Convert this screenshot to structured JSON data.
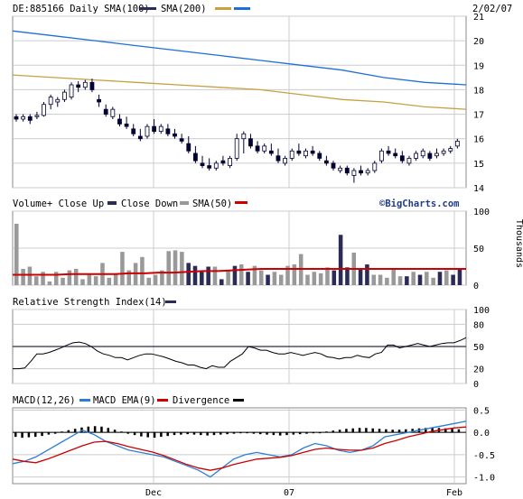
{
  "header": {
    "symbol": "DE:885166",
    "interval": "Daily",
    "sma100_label": "SMA(100)",
    "sma200_label": "SMA(200)",
    "date": "2/02/07"
  },
  "volume_header": {
    "close_up": "Volume+ Close Up",
    "close_down": "Close Down",
    "sma_label": "SMA(50)",
    "brand": "©BigCharts.com",
    "unit_label": "Thousands"
  },
  "rsi_header": {
    "label": "Relative Strength Index(14)"
  },
  "macd_header": {
    "macd": "MACD(12,26)",
    "ema": "MACD EMA(9)",
    "divergence": "Divergence"
  },
  "colors": {
    "background": "#ffffff",
    "grid": "#cccccc",
    "frame": "#888888",
    "sma100": "#1e6fd9",
    "sma200": "#c8a040",
    "up_volume": "#999999",
    "down_volume": "#2b2b57",
    "vol_sma": "#cc0000",
    "rsi": "#000000",
    "macd": "#2a7fd4",
    "macd_ema": "#cc0000",
    "divergence": "#000000",
    "candle": "#000033"
  },
  "chart_data": [
    {
      "type": "candlestick",
      "panel": "price",
      "x_tick_labels": [
        "Dec",
        "07",
        "Feb"
      ],
      "y_ticks": [
        14,
        15,
        16,
        17,
        18,
        19,
        20,
        21
      ],
      "ylim": [
        14,
        21
      ],
      "grid": true,
      "candles": [
        {
          "o": 16.9,
          "h": 17.0,
          "l": 16.7,
          "c": 16.8
        },
        {
          "o": 16.8,
          "h": 17.0,
          "l": 16.7,
          "c": 16.9
        },
        {
          "o": 16.9,
          "h": 17.0,
          "l": 16.6,
          "c": 16.75
        },
        {
          "o": 16.9,
          "h": 17.1,
          "l": 16.8,
          "c": 16.95
        },
        {
          "o": 16.95,
          "h": 17.5,
          "l": 16.9,
          "c": 17.4
        },
        {
          "o": 17.4,
          "h": 17.8,
          "l": 17.2,
          "c": 17.7
        },
        {
          "o": 17.5,
          "h": 17.7,
          "l": 17.3,
          "c": 17.6
        },
        {
          "o": 17.6,
          "h": 18.0,
          "l": 17.5,
          "c": 17.9
        },
        {
          "o": 17.7,
          "h": 18.3,
          "l": 17.6,
          "c": 18.2
        },
        {
          "o": 18.2,
          "h": 18.35,
          "l": 17.9,
          "c": 18.1
        },
        {
          "o": 18.1,
          "h": 18.4,
          "l": 18.0,
          "c": 18.3
        },
        {
          "o": 18.3,
          "h": 18.45,
          "l": 17.9,
          "c": 18.0
        },
        {
          "o": 17.6,
          "h": 17.8,
          "l": 17.3,
          "c": 17.5
        },
        {
          "o": 17.2,
          "h": 17.4,
          "l": 16.9,
          "c": 17.0
        },
        {
          "o": 16.9,
          "h": 17.3,
          "l": 16.8,
          "c": 17.2
        },
        {
          "o": 16.8,
          "h": 17.0,
          "l": 16.5,
          "c": 16.6
        },
        {
          "o": 16.6,
          "h": 16.9,
          "l": 16.4,
          "c": 16.5
        },
        {
          "o": 16.4,
          "h": 16.6,
          "l": 16.1,
          "c": 16.2
        },
        {
          "o": 16.1,
          "h": 16.4,
          "l": 15.9,
          "c": 16.0
        },
        {
          "o": 16.1,
          "h": 16.6,
          "l": 16.0,
          "c": 16.5
        },
        {
          "o": 16.5,
          "h": 16.8,
          "l": 16.2,
          "c": 16.3
        },
        {
          "o": 16.3,
          "h": 16.6,
          "l": 16.2,
          "c": 16.5
        },
        {
          "o": 16.4,
          "h": 16.6,
          "l": 16.1,
          "c": 16.2
        },
        {
          "o": 16.2,
          "h": 16.4,
          "l": 16.0,
          "c": 16.1
        },
        {
          "o": 16.0,
          "h": 16.2,
          "l": 15.8,
          "c": 15.9
        },
        {
          "o": 15.8,
          "h": 16.1,
          "l": 15.4,
          "c": 15.5
        },
        {
          "o": 15.4,
          "h": 15.7,
          "l": 15.0,
          "c": 15.1
        },
        {
          "o": 15.0,
          "h": 15.3,
          "l": 14.8,
          "c": 14.9
        },
        {
          "o": 14.9,
          "h": 15.2,
          "l": 14.7,
          "c": 14.8
        },
        {
          "o": 14.8,
          "h": 15.1,
          "l": 14.7,
          "c": 15.0
        },
        {
          "o": 15.1,
          "h": 15.3,
          "l": 14.9,
          "c": 15.0
        },
        {
          "o": 14.9,
          "h": 15.3,
          "l": 14.8,
          "c": 15.2
        },
        {
          "o": 15.2,
          "h": 16.2,
          "l": 15.1,
          "c": 16.0
        },
        {
          "o": 16.0,
          "h": 16.3,
          "l": 15.4,
          "c": 16.2
        },
        {
          "o": 16.0,
          "h": 16.2,
          "l": 15.6,
          "c": 15.7
        },
        {
          "o": 15.7,
          "h": 15.9,
          "l": 15.4,
          "c": 15.5
        },
        {
          "o": 15.5,
          "h": 15.8,
          "l": 15.4,
          "c": 15.7
        },
        {
          "o": 15.5,
          "h": 15.8,
          "l": 15.3,
          "c": 15.4
        },
        {
          "o": 15.3,
          "h": 15.6,
          "l": 15.0,
          "c": 15.1
        },
        {
          "o": 15.0,
          "h": 15.3,
          "l": 14.9,
          "c": 15.2
        },
        {
          "o": 15.2,
          "h": 15.6,
          "l": 15.1,
          "c": 15.5
        },
        {
          "o": 15.5,
          "h": 15.8,
          "l": 15.3,
          "c": 15.4
        },
        {
          "o": 15.3,
          "h": 15.6,
          "l": 15.2,
          "c": 15.5
        },
        {
          "o": 15.5,
          "h": 15.7,
          "l": 15.3,
          "c": 15.4
        },
        {
          "o": 15.4,
          "h": 15.5,
          "l": 15.1,
          "c": 15.2
        },
        {
          "o": 15.1,
          "h": 15.3,
          "l": 14.9,
          "c": 15.0
        },
        {
          "o": 15.0,
          "h": 15.1,
          "l": 14.7,
          "c": 14.8
        },
        {
          "o": 14.7,
          "h": 14.9,
          "l": 14.6,
          "c": 14.8
        },
        {
          "o": 14.8,
          "h": 14.9,
          "l": 14.5,
          "c": 14.6
        },
        {
          "o": 14.5,
          "h": 14.8,
          "l": 14.2,
          "c": 14.7
        },
        {
          "o": 14.7,
          "h": 14.9,
          "l": 14.5,
          "c": 14.6
        },
        {
          "o": 14.6,
          "h": 14.8,
          "l": 14.5,
          "c": 14.7
        },
        {
          "o": 14.7,
          "h": 15.1,
          "l": 14.6,
          "c": 15.0
        },
        {
          "o": 15.1,
          "h": 15.6,
          "l": 15.0,
          "c": 15.5
        },
        {
          "o": 15.5,
          "h": 15.7,
          "l": 15.3,
          "c": 15.4
        },
        {
          "o": 15.4,
          "h": 15.6,
          "l": 15.2,
          "c": 15.3
        },
        {
          "o": 15.3,
          "h": 15.5,
          "l": 15.0,
          "c": 15.1
        },
        {
          "o": 15.0,
          "h": 15.3,
          "l": 14.9,
          "c": 15.2
        },
        {
          "o": 15.2,
          "h": 15.5,
          "l": 15.1,
          "c": 15.4
        },
        {
          "o": 15.3,
          "h": 15.6,
          "l": 15.2,
          "c": 15.5
        },
        {
          "o": 15.4,
          "h": 15.5,
          "l": 15.1,
          "c": 15.2
        },
        {
          "o": 15.3,
          "h": 15.6,
          "l": 15.2,
          "c": 15.4
        },
        {
          "o": 15.4,
          "h": 15.6,
          "l": 15.3,
          "c": 15.5
        },
        {
          "o": 15.5,
          "h": 15.7,
          "l": 15.4,
          "c": 15.6
        },
        {
          "o": 15.7,
          "h": 16.0,
          "l": 15.6,
          "c": 15.9
        }
      ],
      "sma100": [
        20.4,
        20.2,
        20.0,
        19.8,
        19.6,
        19.4,
        19.2,
        19.0,
        18.8,
        18.5,
        18.3,
        18.2
      ],
      "sma200": [
        18.6,
        18.5,
        18.4,
        18.3,
        18.2,
        18.1,
        18.0,
        17.8,
        17.6,
        17.5,
        17.3,
        17.2
      ],
      "sma100_label": "SMA(100)",
      "sma200_label": "SMA(200)"
    },
    {
      "type": "bar",
      "panel": "volume",
      "y_ticks": [
        0,
        50,
        100
      ],
      "ylim": [
        0,
        100
      ],
      "ylabel": "Thousands",
      "values": [
        83,
        22,
        25,
        12,
        18,
        5,
        18,
        10,
        20,
        22,
        8,
        14,
        12,
        30,
        10,
        15,
        45,
        20,
        30,
        38,
        10,
        14,
        20,
        46,
        47,
        45,
        30,
        26,
        18,
        25,
        25,
        8,
        20,
        26,
        28,
        18,
        26,
        20,
        14,
        18,
        14,
        26,
        28,
        42,
        14,
        18,
        16,
        24,
        20,
        68,
        24,
        44,
        22,
        28,
        14,
        14,
        10,
        22,
        12,
        12,
        18,
        14,
        18,
        10,
        18,
        20,
        14,
        22
      ],
      "down": [
        false,
        false,
        false,
        false,
        false,
        false,
        false,
        false,
        false,
        false,
        false,
        false,
        false,
        false,
        false,
        false,
        false,
        false,
        false,
        false,
        false,
        false,
        false,
        false,
        false,
        false,
        true,
        true,
        true,
        true,
        false,
        true,
        false,
        true,
        false,
        true,
        false,
        false,
        true,
        false,
        false,
        false,
        false,
        false,
        false,
        false,
        false,
        false,
        true,
        true,
        true,
        false,
        true,
        true,
        false,
        false,
        false,
        false,
        false,
        true,
        false,
        true,
        false,
        false,
        true,
        false,
        true,
        true
      ],
      "sma50": [
        14,
        14,
        14,
        14,
        15,
        15,
        15,
        15,
        16,
        16,
        17,
        17,
        18,
        19,
        19,
        20,
        21,
        22,
        22,
        22,
        22,
        22,
        22,
        22,
        22,
        22,
        22,
        22,
        22,
        22,
        22,
        22
      ],
      "sma_label": "SMA(50)"
    },
    {
      "type": "line",
      "panel": "rsi",
      "label": "Relative Strength Index(14)",
      "y_ticks": [
        0,
        20,
        50,
        80,
        100
      ],
      "ylim": [
        0,
        100
      ],
      "reference_line": 50,
      "values": [
        20,
        20,
        21,
        30,
        40,
        40,
        42,
        45,
        48,
        52,
        55,
        56,
        54,
        50,
        44,
        40,
        38,
        35,
        35,
        32,
        35,
        38,
        40,
        40,
        38,
        36,
        33,
        30,
        28,
        25,
        25,
        22,
        20,
        24,
        22,
        22,
        30,
        35,
        40,
        50,
        48,
        45,
        45,
        42,
        40,
        40,
        42,
        40,
        38,
        40,
        42,
        40,
        36,
        35,
        33,
        35,
        35,
        38,
        36,
        35,
        40,
        42,
        52,
        52,
        48,
        50,
        52,
        54,
        52,
        50,
        52,
        54,
        55,
        55,
        58,
        62
      ]
    },
    {
      "type": "line",
      "panel": "macd",
      "y_ticks": [
        0.5,
        0.0,
        -0.5,
        -1.0
      ],
      "ylim": [
        -1.15,
        0.55
      ],
      "series": [
        {
          "name": "MACD(12,26)",
          "values": [
            -0.7,
            -0.65,
            -0.55,
            -0.4,
            -0.25,
            -0.1,
            0.05,
            -0.05,
            -0.2,
            -0.3,
            -0.4,
            -0.45,
            -0.5,
            -0.55,
            -0.65,
            -0.75,
            -0.85,
            -1.0,
            -0.8,
            -0.6,
            -0.5,
            -0.45,
            -0.5,
            -0.55,
            -0.5,
            -0.35,
            -0.25,
            -0.3,
            -0.4,
            -0.45,
            -0.4,
            -0.3,
            -0.1,
            -0.05,
            0.0,
            0.05,
            0.1,
            0.15,
            0.2,
            0.25
          ]
        },
        {
          "name": "MACD EMA(9)",
          "values": [
            -0.6,
            -0.65,
            -0.68,
            -0.6,
            -0.5,
            -0.4,
            -0.3,
            -0.22,
            -0.2,
            -0.25,
            -0.32,
            -0.38,
            -0.44,
            -0.52,
            -0.62,
            -0.72,
            -0.8,
            -0.85,
            -0.8,
            -0.72,
            -0.66,
            -0.6,
            -0.58,
            -0.56,
            -0.52,
            -0.45,
            -0.38,
            -0.35,
            -0.38,
            -0.4,
            -0.4,
            -0.35,
            -0.25,
            -0.18,
            -0.1,
            -0.04,
            0.02,
            0.06,
            0.1,
            0.12
          ]
        }
      ],
      "divergence": [
        -0.1,
        -0.12,
        -0.11,
        -0.1,
        -0.08,
        -0.05,
        -0.03,
        0.02,
        0.05,
        0.08,
        0.11,
        0.13,
        0.14,
        0.13,
        0.1,
        0.06,
        0.02,
        -0.03,
        -0.06,
        -0.09,
        -0.11,
        -0.12,
        -0.1,
        -0.08,
        -0.06,
        -0.05,
        -0.04,
        -0.05,
        -0.06,
        -0.07,
        -0.06,
        -0.05,
        -0.04,
        -0.03,
        -0.02,
        -0.02,
        -0.03,
        -0.04,
        -0.05,
        -0.06,
        -0.07,
        -0.06,
        -0.05,
        -0.04,
        -0.03,
        -0.02,
        0.0,
        0.02,
        0.04,
        0.06,
        0.08,
        0.09,
        0.1,
        0.1,
        0.09,
        0.08,
        0.07,
        0.06,
        0.06,
        0.07,
        0.08,
        0.09,
        0.1,
        0.1,
        0.1,
        0.09,
        0.08,
        0.07
      ]
    }
  ]
}
